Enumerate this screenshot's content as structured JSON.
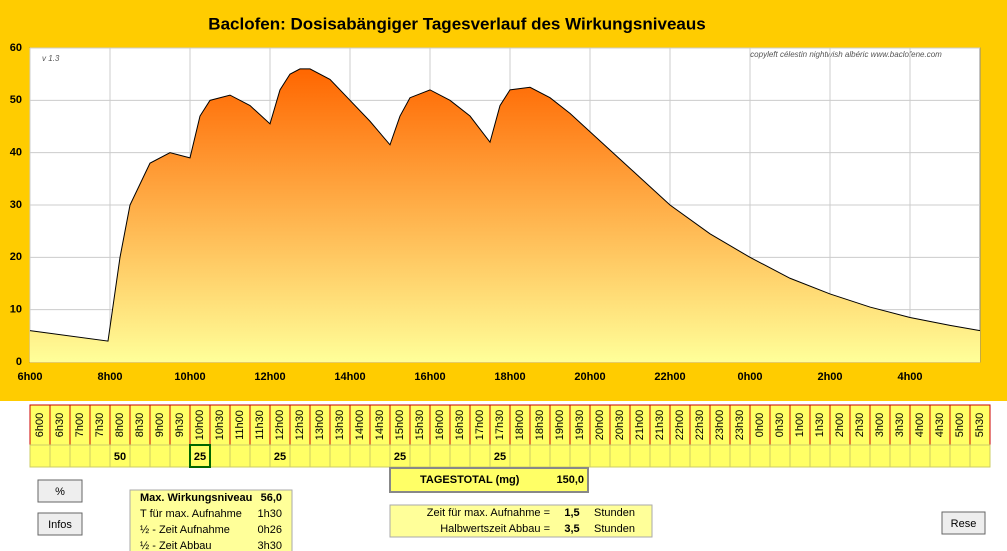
{
  "chart_data": {
    "type": "area",
    "title": "Baclofen: Dosisabängiger Tagesverlauf des Wirkungsniveaus",
    "annotations": [
      "v 1.3",
      "copyleft  célestin  nightwish  albéric  www.baclofene.com"
    ],
    "x": [
      6,
      7.95,
      8.25,
      8.5,
      9,
      9.5,
      10,
      10.25,
      10.5,
      11,
      11.5,
      12,
      12.25,
      12.5,
      12.75,
      13,
      13.5,
      14,
      14.5,
      15,
      15.25,
      15.5,
      16,
      16.5,
      17,
      17.5,
      17.75,
      18,
      18.5,
      19,
      19.5,
      20,
      21,
      22,
      23,
      24,
      25,
      26,
      27,
      28,
      29,
      29.75
    ],
    "values": [
      6,
      4,
      20,
      30,
      38,
      40,
      39,
      47,
      50,
      51,
      49,
      45.5,
      52,
      55,
      56,
      56,
      54,
      50,
      46,
      41.5,
      47,
      50.5,
      52,
      50,
      47,
      42,
      49,
      52,
      52.5,
      50.5,
      47.5,
      44,
      37,
      30,
      24.5,
      20,
      16,
      13,
      10.5,
      8.5,
      7,
      6
    ],
    "color_top": "#ff6600",
    "color_bottom": "#ffff99",
    "line_color": "#000000",
    "xlim": [
      6,
      29.75
    ],
    "ylim": [
      0,
      60
    ],
    "yticks": [
      0,
      10,
      20,
      30,
      40,
      50,
      60
    ],
    "xticks": [
      {
        "value": 6,
        "label": "6h00"
      },
      {
        "value": 8,
        "label": "8h00"
      },
      {
        "value": 10,
        "label": "10h00"
      },
      {
        "value": 12,
        "label": "12h00"
      },
      {
        "value": 14,
        "label": "14h00"
      },
      {
        "value": 16,
        "label": "16h00"
      },
      {
        "value": 18,
        "label": "18h00"
      },
      {
        "value": 20,
        "label": "20h00"
      },
      {
        "value": 22,
        "label": "22h00"
      },
      {
        "value": 24,
        "label": "0h00"
      },
      {
        "value": 26,
        "label": "2h00"
      },
      {
        "value": 28,
        "label": "4h00"
      }
    ],
    "grid": true
  },
  "schedule": {
    "times": [
      "6h00",
      "6h30",
      "7h00",
      "7h30",
      "8h00",
      "8h30",
      "9h00",
      "9h30",
      "10h00",
      "10h30",
      "11h00",
      "11h30",
      "12h00",
      "12h30",
      "13h00",
      "13h30",
      "14h00",
      "14h30",
      "15h00",
      "15h30",
      "16h00",
      "16h30",
      "17h00",
      "17h30",
      "18h00",
      "18h30",
      "19h00",
      "19h30",
      "20h00",
      "20h30",
      "21h00",
      "21h30",
      "22h00",
      "22h30",
      "23h00",
      "23h30",
      "0h00",
      "0h30",
      "1h00",
      "1h30",
      "2h00",
      "2h30",
      "3h00",
      "3h30",
      "4h00",
      "4h30",
      "5h00",
      "5h30"
    ],
    "doses": [
      null,
      null,
      null,
      null,
      "50",
      null,
      null,
      null,
      "25",
      null,
      null,
      null,
      "25",
      null,
      null,
      null,
      null,
      null,
      "25",
      null,
      null,
      null,
      null,
      "25",
      null,
      null,
      null,
      null,
      null,
      null,
      null,
      null,
      null,
      null,
      null,
      null,
      null,
      null,
      null,
      null,
      null,
      null,
      null,
      null,
      null,
      null,
      null,
      null
    ]
  },
  "total": {
    "label": "TAGESTOTAL (mg)",
    "value": "150,0"
  },
  "buttons": [
    "%",
    "Infos",
    "Rese"
  ],
  "info": [
    [
      "Max. Wirkungsniveau",
      "56,0"
    ],
    [
      "T für max. Aufnahme",
      "1h30"
    ],
    [
      "½ - Zeit Aufnahme",
      "0h26"
    ],
    [
      "½ - Zeit Abbau",
      "3h30"
    ]
  ],
  "params": [
    [
      "Zeit für max. Aufnahme  =",
      "1,5",
      "Stunden"
    ],
    [
      "Halbwertszeit Abbau  =",
      "3,5",
      "Stunden"
    ]
  ]
}
